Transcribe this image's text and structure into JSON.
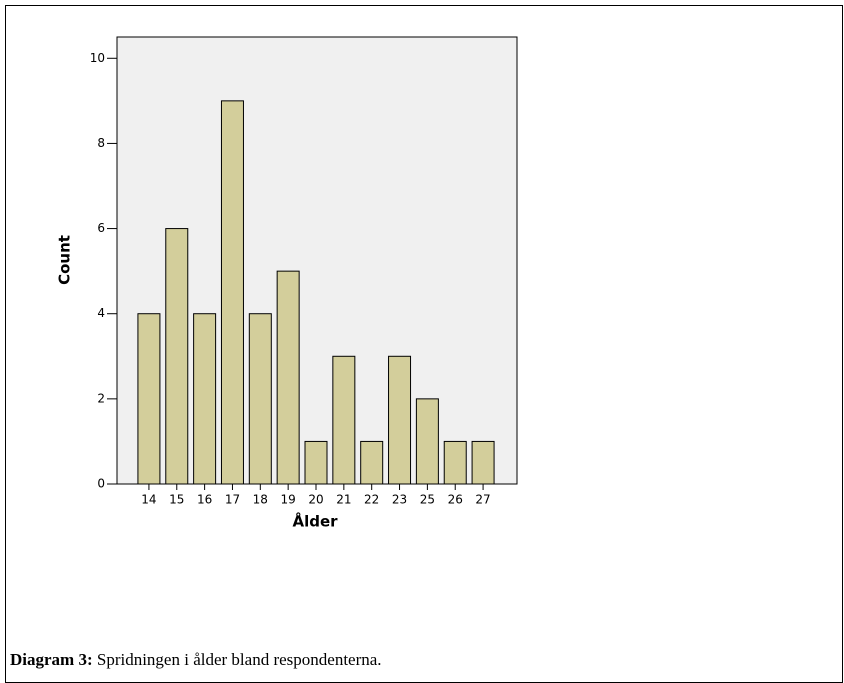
{
  "chart_data": {
    "type": "bar",
    "categories": [
      "14",
      "15",
      "16",
      "17",
      "18",
      "19",
      "20",
      "21",
      "22",
      "23",
      "25",
      "26",
      "27"
    ],
    "values": [
      4,
      6,
      4,
      9,
      4,
      5,
      1,
      3,
      1,
      3,
      2,
      1,
      1
    ],
    "color": "#d3ce9b",
    "xlabel": "Ålder",
    "ylabel": "Count",
    "ylim": [
      0,
      10.5
    ],
    "yticks": [
      0,
      2,
      4,
      6,
      8,
      10
    ]
  },
  "caption": {
    "label": "Diagram 3:",
    "text": "Spridningen i ålder bland respondenterna."
  }
}
